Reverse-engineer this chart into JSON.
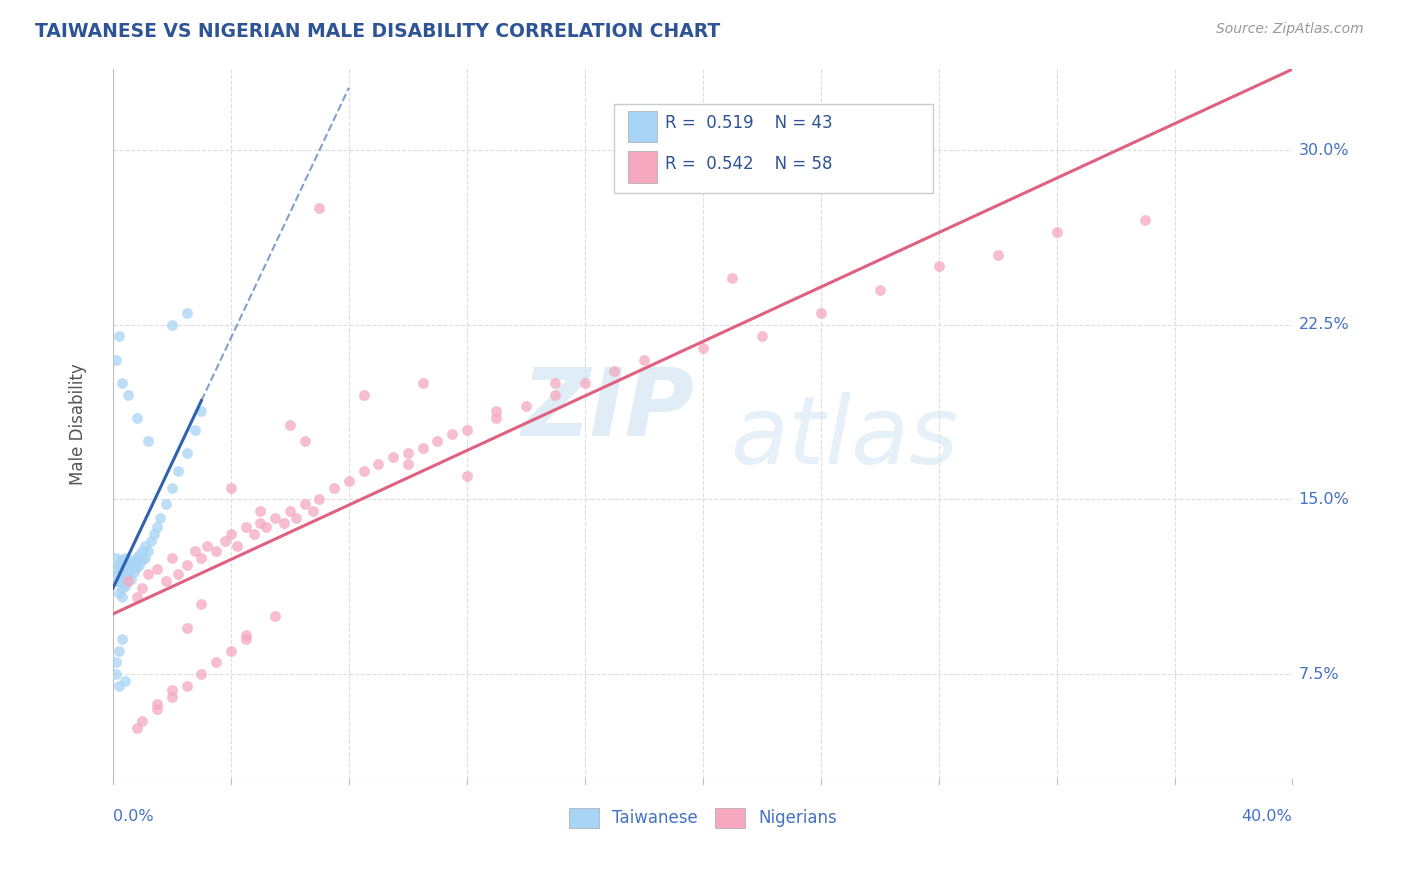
{
  "title": "TAIWANESE VS NIGERIAN MALE DISABILITY CORRELATION CHART",
  "source": "Source: ZipAtlas.com",
  "ylabel": "Male Disability",
  "yticks": [
    0.075,
    0.15,
    0.225,
    0.3
  ],
  "ytick_labels": [
    "7.5%",
    "15.0%",
    "22.5%",
    "30.0%"
  ],
  "xlim": [
    0.0,
    0.4
  ],
  "ylim": [
    0.03,
    0.335
  ],
  "taiwanese_color": "#A8D4F5",
  "nigerian_color": "#F5A8C0",
  "taiwanese_line_color": "#3060B0",
  "nigerian_line_color": "#E06080",
  "R_taiwanese": 0.519,
  "N_taiwanese": 43,
  "R_nigerian": 0.542,
  "N_nigerian": 58,
  "watermark_zip": "ZIP",
  "watermark_atlas": "atlas",
  "background_color": "#FFFFFF",
  "grid_color": "#DDDDDD",
  "title_color": "#2F5496",
  "tick_label_color": "#4472C4",
  "legend_text_color": "#2F5496"
}
